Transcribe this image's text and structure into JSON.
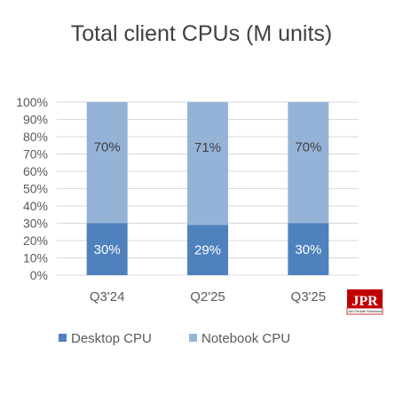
{
  "chart_data": {
    "type": "bar",
    "stacked": true,
    "title": "Total client CPUs (M units)",
    "categories": [
      "Q3'24",
      "Q2'25",
      "Q3'25"
    ],
    "series": [
      {
        "name": "Desktop CPU",
        "values": [
          30,
          29,
          30
        ],
        "labels": [
          "30%",
          "29%",
          "30%"
        ],
        "color": "#4f81bd",
        "label_color": "#ffffff"
      },
      {
        "name": "Notebook CPU",
        "values": [
          70,
          71,
          70
        ],
        "labels": [
          "70%",
          "71%",
          "70%"
        ],
        "color": "#95b3d7",
        "label_color": "#404040"
      }
    ],
    "ylim": [
      0,
      100
    ],
    "yticks": [
      "0%",
      "10%",
      "20%",
      "30%",
      "40%",
      "50%",
      "60%",
      "70%",
      "80%",
      "90%",
      "100%"
    ],
    "grid": true,
    "legend": "bottom-left"
  },
  "logo": {
    "main": "JPR",
    "sub": "Jon Peddie Research",
    "color": "#c00000"
  }
}
